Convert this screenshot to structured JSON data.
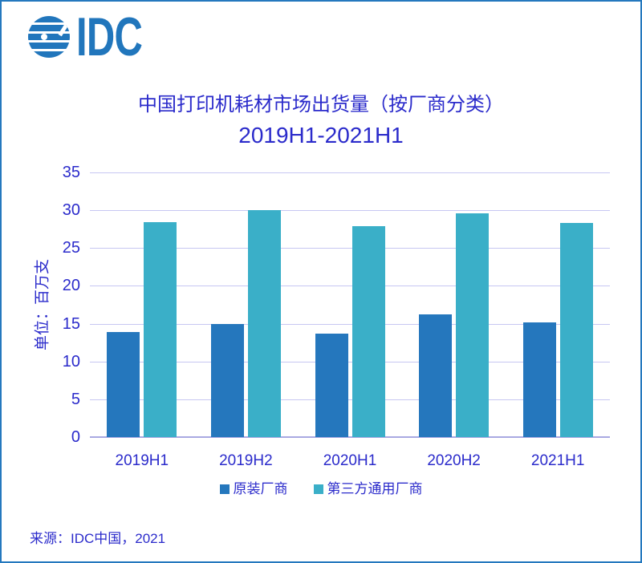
{
  "page": {
    "logo": {
      "text": "IDC"
    },
    "source": "来源：IDC中国，2021"
  },
  "chart_data": {
    "type": "bar",
    "title": "中国打印机耗材市场出货量（按厂商分类）",
    "subtitle": "2019H1-2021H1",
    "ylabel": "单位：百万支",
    "xlabel": "",
    "categories": [
      "2019H1",
      "2019H2",
      "2020H1",
      "2020H2",
      "2021H1"
    ],
    "series": [
      {
        "name": "原装厂商",
        "color": "#2577BD",
        "values": [
          13.9,
          15.0,
          13.7,
          16.2,
          15.2
        ]
      },
      {
        "name": "第三方通用厂商",
        "color": "#3AAFC8",
        "values": [
          28.4,
          30.0,
          27.9,
          29.6,
          28.3
        ]
      }
    ],
    "ylim": [
      0,
      35
    ],
    "yticks": [
      0,
      5,
      10,
      15,
      20,
      25,
      30,
      35
    ],
    "grid": true,
    "legend_position": "bottom"
  }
}
